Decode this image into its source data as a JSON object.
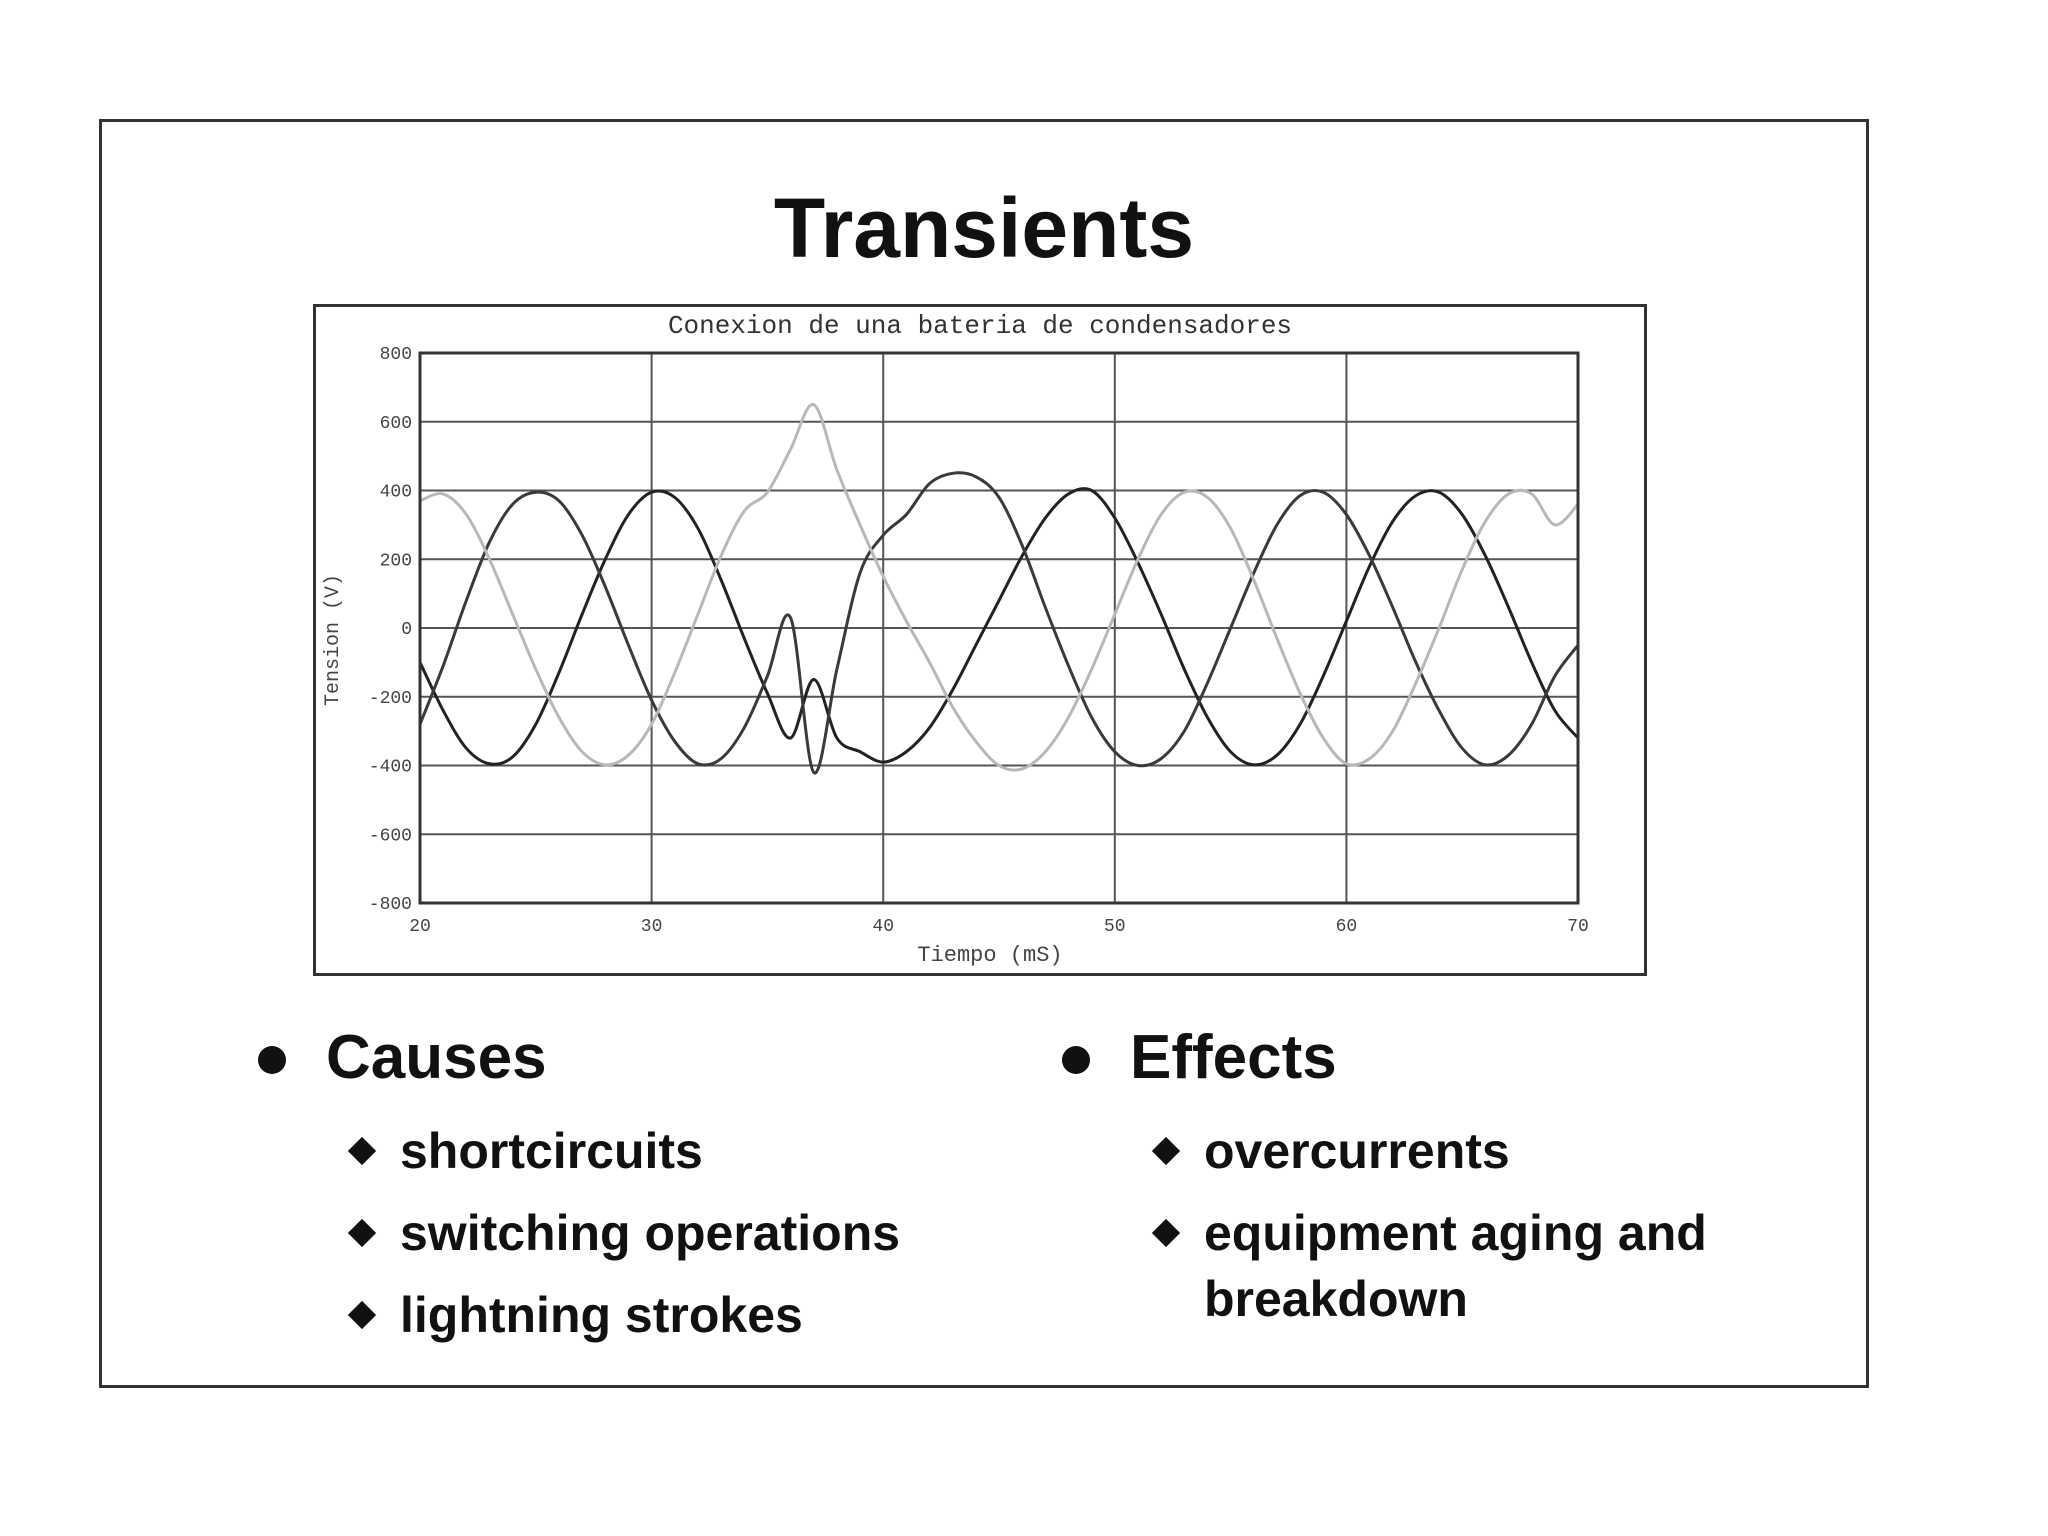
{
  "slide": {
    "title": "Transients"
  },
  "causes": {
    "heading": "Causes",
    "items": [
      "shortcircuits",
      "switching operations",
      "lightning strokes"
    ]
  },
  "effects": {
    "heading": "Effects",
    "items": [
      "overcurrents",
      "equipment aging and breakdown"
    ]
  },
  "chart_data": {
    "type": "line",
    "title": "Conexion de una bateria de condensadores",
    "xlabel": "Tiempo (mS)",
    "ylabel": "Tension (V)",
    "xlim": [
      20,
      70
    ],
    "ylim": [
      -800,
      800
    ],
    "xticks": [
      20,
      30,
      40,
      50,
      60,
      70
    ],
    "yticks": [
      -800,
      -600,
      -400,
      -200,
      0,
      200,
      400,
      600,
      800
    ],
    "grid": true,
    "colors": [
      "#222222",
      "#3a3a3a",
      "#b8b8b8"
    ],
    "series": [
      {
        "x": [
          20,
          21,
          22,
          23,
          24,
          25,
          26,
          27,
          28,
          29,
          30,
          31,
          32,
          33,
          34,
          35,
          36,
          37,
          38,
          39,
          40,
          41,
          42,
          43,
          44,
          45,
          46,
          47,
          48,
          49,
          50,
          51,
          52,
          53,
          54,
          55,
          56,
          57,
          58,
          59,
          60,
          61,
          62,
          63,
          64,
          65,
          66,
          67,
          68,
          69,
          70
        ],
        "values": [
          -100,
          -240,
          -350,
          -395,
          -375,
          -280,
          -130,
          40,
          200,
          330,
          395,
          380,
          290,
          140,
          -30,
          -190,
          -320,
          -150,
          -320,
          -360,
          -390,
          -360,
          -290,
          -180,
          -50,
          80,
          210,
          320,
          390,
          400,
          320,
          190,
          40,
          -120,
          -260,
          -360,
          -398,
          -370,
          -280,
          -140,
          20,
          180,
          310,
          385,
          395,
          330,
          210,
          60,
          -100,
          -240,
          -320
        ]
      },
      {
        "x": [
          20,
          21,
          22,
          23,
          24,
          25,
          26,
          27,
          28,
          29,
          30,
          31,
          32,
          33,
          34,
          35,
          36,
          37,
          38,
          39,
          40,
          41,
          42,
          43,
          44,
          45,
          46,
          47,
          48,
          49,
          50,
          51,
          52,
          53,
          54,
          55,
          56,
          57,
          58,
          59,
          60,
          61,
          62,
          63,
          64,
          65,
          66,
          67,
          68,
          69,
          70
        ],
        "values": [
          -280,
          -110,
          80,
          250,
          360,
          395,
          370,
          270,
          120,
          -50,
          -210,
          -330,
          -395,
          -380,
          -290,
          -140,
          30,
          -420,
          -120,
          160,
          270,
          330,
          420,
          450,
          440,
          380,
          240,
          60,
          -110,
          -260,
          -360,
          -400,
          -380,
          -300,
          -160,
          0,
          160,
          300,
          385,
          395,
          330,
          210,
          60,
          -100,
          -240,
          -350,
          -398,
          -370,
          -280,
          -140,
          -50
        ]
      },
      {
        "x": [
          20,
          21,
          22,
          23,
          24,
          25,
          26,
          27,
          28,
          29,
          30,
          31,
          32,
          33,
          34,
          35,
          36,
          37,
          38,
          39,
          40,
          41,
          42,
          43,
          44,
          45,
          46,
          47,
          48,
          49,
          50,
          51,
          52,
          53,
          54,
          55,
          56,
          57,
          58,
          59,
          60,
          61,
          62,
          63,
          64,
          65,
          66,
          67,
          68,
          69,
          70
        ],
        "values": [
          370,
          390,
          330,
          200,
          40,
          -120,
          -260,
          -360,
          -398,
          -370,
          -280,
          -130,
          40,
          210,
          340,
          395,
          520,
          650,
          460,
          300,
          150,
          20,
          -100,
          -230,
          -330,
          -400,
          -410,
          -360,
          -260,
          -120,
          40,
          200,
          330,
          395,
          380,
          290,
          140,
          -30,
          -190,
          -320,
          -395,
          -380,
          -300,
          -160,
          0,
          170,
          310,
          390,
          390,
          300,
          360
        ]
      }
    ]
  }
}
